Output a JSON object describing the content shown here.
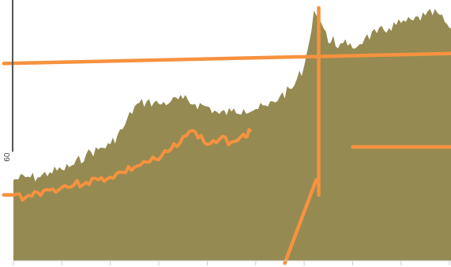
{
  "chart_data": {
    "type": "area",
    "title": "",
    "xlabel": "",
    "ylabel": "",
    "ylim": [
      0,
      100
    ],
    "y_tick_labels": [
      {
        "value": 60,
        "label": "60"
      }
    ],
    "x_ticks": [
      0,
      1,
      2,
      3,
      4,
      5,
      6,
      7,
      8,
      9
    ],
    "grid": false,
    "legend": "none",
    "colors": {
      "area": "#958a52",
      "overlay": "#f6923f",
      "axis": "#555555",
      "tick": "#cccccc"
    },
    "area": {
      "x": [
        0,
        0.25,
        0.5,
        0.75,
        1,
        1.25,
        1.5,
        1.75,
        2,
        2.25,
        2.5,
        2.75,
        3,
        3.25,
        3.5,
        3.75,
        4,
        4.25,
        4.5,
        4.75,
        5,
        5.25,
        5.5,
        5.75,
        6,
        6.1,
        6.2,
        6.3,
        6.4,
        6.5,
        6.6,
        6.7,
        6.8,
        6.9,
        7,
        7.25,
        7.5,
        7.75,
        8,
        8.25,
        8.5,
        8.75,
        9,
        9.1
      ],
      "y": [
        32,
        33,
        33,
        35,
        36,
        38,
        42,
        44,
        46,
        52,
        61,
        63,
        62,
        63,
        64,
        62,
        61,
        58,
        59,
        60,
        60,
        61,
        65,
        68,
        77,
        86,
        99,
        96,
        92,
        86,
        89,
        84,
        86,
        85,
        84,
        88,
        90,
        92,
        94,
        95,
        97,
        98,
        92,
        88
      ]
    },
    "overlay_line": {
      "x": [
        0,
        0.25,
        0.5,
        0.75,
        1,
        1.25,
        1.5,
        1.75,
        2,
        2.25,
        2.5,
        2.75,
        3,
        3.25,
        3.5,
        3.75,
        4,
        4.25,
        4.5,
        4.75,
        4.9
      ],
      "y": [
        26,
        25,
        27,
        28,
        29,
        30,
        31,
        32,
        33,
        35,
        37,
        39,
        40,
        44,
        49,
        51,
        46,
        48,
        47,
        50,
        51
      ]
    },
    "reference_lines": [
      {
        "x": [
          -0.2,
          9.1
        ],
        "y": [
          78,
          82
        ]
      },
      {
        "x": [
          6.3,
          6.3
        ],
        "y": [
          26,
          100
        ]
      },
      {
        "x": [
          5.6,
          6.25
        ],
        "y": [
          -1,
          32
        ]
      },
      {
        "x": [
          7,
          9.1
        ],
        "y": [
          45,
          45
        ]
      },
      {
        "x": [
          -0.2,
          0
        ],
        "y": [
          26,
          26
        ]
      }
    ]
  }
}
